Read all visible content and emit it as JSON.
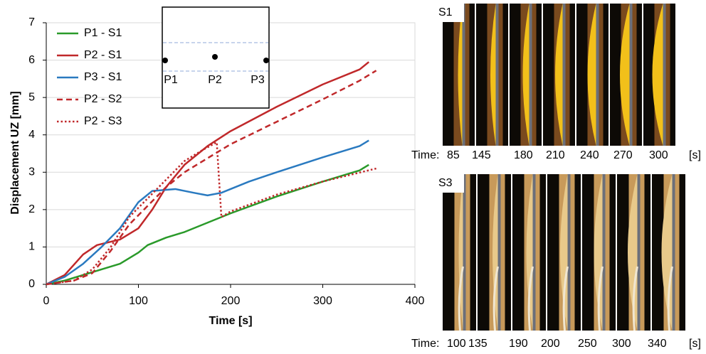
{
  "chart_data": {
    "type": "line",
    "y_label": "Displacement UZ [mm]",
    "x_label": "Time [s]",
    "xlim": [
      0,
      400
    ],
    "xticks": [
      0,
      100,
      200,
      300,
      400
    ],
    "ylim": [
      0,
      7
    ],
    "yticks": [
      0,
      1,
      2,
      3,
      4,
      5,
      6,
      7
    ],
    "grid": true,
    "legend": "top-left",
    "series": [
      {
        "name": "P1 - S1",
        "color": "#2a9a2a",
        "dash": "solid",
        "x": [
          0,
          20,
          40,
          60,
          80,
          100,
          110,
          130,
          150,
          175,
          200,
          250,
          300,
          340,
          350
        ],
        "values": [
          0,
          0.1,
          0.25,
          0.4,
          0.55,
          0.85,
          1.05,
          1.25,
          1.4,
          1.65,
          1.9,
          2.35,
          2.75,
          3.05,
          3.2
        ]
      },
      {
        "name": "P2 - S1",
        "color": "#c0282a",
        "dash": "solid",
        "x": [
          0,
          20,
          40,
          55,
          80,
          100,
          115,
          130,
          150,
          175,
          200,
          250,
          300,
          340,
          350
        ],
        "values": [
          0,
          0.25,
          0.8,
          1.05,
          1.2,
          1.5,
          2.0,
          2.6,
          3.2,
          3.7,
          4.1,
          4.75,
          5.35,
          5.75,
          5.95
        ]
      },
      {
        "name": "P3 - S1",
        "color": "#2a7ac0",
        "dash": "solid",
        "x": [
          0,
          20,
          40,
          60,
          80,
          100,
          115,
          140,
          160,
          175,
          190,
          220,
          250,
          300,
          340,
          350
        ],
        "values": [
          0,
          0.2,
          0.55,
          1.0,
          1.5,
          2.2,
          2.5,
          2.55,
          2.45,
          2.38,
          2.45,
          2.75,
          3.0,
          3.4,
          3.7,
          3.85
        ]
      },
      {
        "name": "P2 - S2",
        "color": "#c0282a",
        "dash": "dashed",
        "x": [
          0,
          30,
          50,
          70,
          90,
          110,
          130,
          150,
          180,
          200,
          250,
          300,
          340,
          358
        ],
        "values": [
          0,
          0.1,
          0.3,
          0.9,
          1.6,
          2.1,
          2.6,
          3.0,
          3.45,
          3.75,
          4.35,
          4.95,
          5.45,
          5.72
        ]
      },
      {
        "name": "P2 - S3",
        "color": "#c0282a",
        "dash": "dotted",
        "x": [
          0,
          30,
          50,
          70,
          90,
          110,
          130,
          150,
          170,
          185,
          190,
          200,
          250,
          300,
          358
        ],
        "values": [
          0,
          0.1,
          0.4,
          1.0,
          1.8,
          2.3,
          2.8,
          3.3,
          3.6,
          3.8,
          1.8,
          1.95,
          2.4,
          2.75,
          3.1
        ]
      }
    ],
    "inset": {
      "labels": [
        "P1",
        "P2",
        "P3"
      ]
    }
  },
  "photo_panels": [
    {
      "label": "S1",
      "time_label": "Time:",
      "times": [
        "85",
        "145",
        "180",
        "210",
        "240",
        "270",
        "300"
      ],
      "unit": "[s]"
    },
    {
      "label": "S3",
      "time_label": "Time:",
      "times": [
        "100",
        "135",
        "190",
        "200",
        "250",
        "300",
        "340"
      ],
      "unit": "[s]"
    }
  ]
}
